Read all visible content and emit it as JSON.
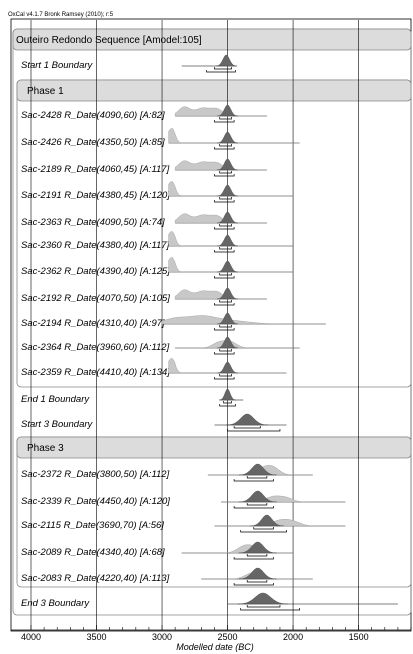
{
  "header": "OxCal v4.1.7 Bronk Ramsey (2010); r:5",
  "chart_data": {
    "type": "oxcal-multiplot",
    "xlabel": "Modelled date (BC)",
    "xlim": [
      4000,
      1100
    ],
    "x_ticks": [
      4000,
      3500,
      3000,
      2500,
      2000,
      1500
    ],
    "sequence": "Outeiro Redondo Sequence [Amodel:105]",
    "rows": [
      {
        "label": "Start 1 Boundary",
        "kind": "boundary",
        "line": [
          2850,
          2430
        ],
        "post": {
          "mu": 2510,
          "sd": 25
        },
        "ranges": [
          [
            2600,
            2470
          ],
          [
            2660,
            2440
          ]
        ]
      },
      {
        "label": "Phase 1",
        "kind": "phase-header"
      },
      {
        "label": "Sac-2428 R_Date(4090,60) [A:82]",
        "kind": "date",
        "line": [
          2900,
          2200
        ],
        "prior": "a",
        "post": {
          "mu": 2500,
          "sd": 25
        },
        "ranges": [
          [
            2560,
            2470
          ],
          [
            2600,
            2450
          ]
        ]
      },
      {
        "label": "Sac-2426 R_Date(4350,50) [A:85]",
        "kind": "date",
        "line": [
          2950,
          1950
        ],
        "prior": "b",
        "post": {
          "mu": 2500,
          "sd": 25
        },
        "ranges": [
          [
            2560,
            2470
          ],
          [
            2600,
            2450
          ]
        ]
      },
      {
        "label": "Sac-2189 R_Date(4060,45) [A:117]",
        "kind": "date",
        "line": [
          2900,
          2200
        ],
        "prior": "a",
        "post": {
          "mu": 2500,
          "sd": 25
        },
        "ranges": [
          [
            2560,
            2470
          ],
          [
            2600,
            2450
          ]
        ]
      },
      {
        "label": "Sac-2191 R_Date(4380,45) [A:120]",
        "kind": "date",
        "line": [
          2950,
          2000
        ],
        "prior": "b",
        "post": {
          "mu": 2500,
          "sd": 25
        },
        "ranges": [
          [
            2560,
            2470
          ],
          [
            2600,
            2450
          ]
        ]
      },
      {
        "label": "Sac-2363 R_Date(4090,50) [A:74]",
        "kind": "date",
        "line": [
          2900,
          2200
        ],
        "prior": "a",
        "post": {
          "mu": 2500,
          "sd": 25
        },
        "ranges": [
          [
            2560,
            2470
          ],
          [
            2600,
            2450
          ]
        ]
      },
      {
        "label": "Sac-2360 R_Date(4380,40) [A:117]",
        "kind": "date",
        "line": [
          2950,
          2000
        ],
        "prior": "b",
        "post": {
          "mu": 2500,
          "sd": 25
        },
        "ranges": [
          [
            2560,
            2470
          ],
          [
            2600,
            2450
          ]
        ]
      },
      {
        "label": "Sac-2362 R_Date(4390,40) [A:125]",
        "kind": "date",
        "line": [
          2950,
          2000
        ],
        "prior": "b",
        "post": {
          "mu": 2500,
          "sd": 25
        },
        "ranges": [
          [
            2560,
            2470
          ],
          [
            2600,
            2450
          ]
        ]
      },
      {
        "label": "Sac-2192 R_Date(4070,50) [A:105]",
        "kind": "date",
        "line": [
          2900,
          2200
        ],
        "prior": "a",
        "post": {
          "mu": 2500,
          "sd": 25
        },
        "ranges": [
          [
            2560,
            2470
          ],
          [
            2600,
            2450
          ]
        ]
      },
      {
        "label": "Sac-2194 R_Date(4310,40) [A:97]",
        "kind": "date",
        "line": [
          3000,
          1750
        ],
        "prior": "c",
        "post": {
          "mu": 2500,
          "sd": 25
        },
        "ranges": [
          [
            2560,
            2470
          ],
          [
            2600,
            2450
          ]
        ]
      },
      {
        "label": "Sac-2364 R_Date(3960,60) [A:112]",
        "kind": "date",
        "line": [
          2900,
          1950
        ],
        "prior": "d",
        "post": {
          "mu": 2500,
          "sd": 25
        },
        "ranges": [
          [
            2560,
            2470
          ],
          [
            2600,
            2450
          ]
        ]
      },
      {
        "label": "Sac-2359 R_Date(4410,40) [A:134]",
        "kind": "date",
        "line": [
          2950,
          2050
        ],
        "prior": "b",
        "post": {
          "mu": 2500,
          "sd": 25
        },
        "ranges": [
          [
            2560,
            2470
          ],
          [
            2600,
            2450
          ]
        ]
      },
      {
        "label": "End 1 Boundary",
        "kind": "boundary",
        "line": [
          2560,
          2380
        ],
        "post": {
          "mu": 2500,
          "sd": 20
        },
        "ranges": [
          [
            2530,
            2470
          ],
          [
            2560,
            2440
          ]
        ]
      },
      {
        "label": "Start 3 Boundary",
        "kind": "boundary",
        "line": [
          2600,
          2050
        ],
        "post": {
          "mu": 2350,
          "sd": 50
        },
        "ranges": [
          [
            2450,
            2250
          ],
          [
            2500,
            2100
          ]
        ]
      },
      {
        "label": "Phase 3",
        "kind": "phase-header"
      },
      {
        "label": "Sac-2372 R_Date(3800,50) [A:112]",
        "kind": "date",
        "line": [
          2650,
          1850
        ],
        "prior": "e",
        "post": {
          "mu": 2270,
          "sd": 45
        },
        "ranges": [
          [
            2350,
            2200
          ],
          [
            2450,
            2150
          ]
        ]
      },
      {
        "label": "Sac-2339 R_Date(4450,40) [A:120]",
        "kind": "date",
        "line": [
          2550,
          1600
        ],
        "prior": "f",
        "post": {
          "mu": 2270,
          "sd": 45
        },
        "ranges": [
          [
            2350,
            2200
          ],
          [
            2450,
            2150
          ]
        ]
      },
      {
        "label": "Sac-2115 R_Date(3690,70) [A:56]",
        "kind": "date",
        "line": [
          2600,
          1600
        ],
        "prior": "g",
        "post": {
          "mu": 2200,
          "sd": 40
        },
        "ranges": [
          [
            2300,
            2150
          ],
          [
            2400,
            2050
          ]
        ]
      },
      {
        "label": "Sac-2089 R_Date(4340,40) [A:68]",
        "kind": "date",
        "line": [
          2850,
          2000
        ],
        "prior": "h",
        "post": {
          "mu": 2270,
          "sd": 45
        },
        "ranges": [
          [
            2350,
            2200
          ],
          [
            2450,
            2150
          ]
        ]
      },
      {
        "label": "Sac-2083 R_Date(4220,40) [A:113]",
        "kind": "date",
        "line": [
          2700,
          1850
        ],
        "prior": "i",
        "post": {
          "mu": 2270,
          "sd": 45
        },
        "ranges": [
          [
            2350,
            2200
          ],
          [
            2450,
            2150
          ]
        ]
      },
      {
        "label": "End 3 Boundary",
        "kind": "boundary",
        "line": [
          2500,
          1200
        ],
        "post": {
          "mu": 2230,
          "sd": 60
        },
        "ranges": [
          [
            2350,
            2100
          ],
          [
            2400,
            1950
          ]
        ]
      }
    ]
  }
}
